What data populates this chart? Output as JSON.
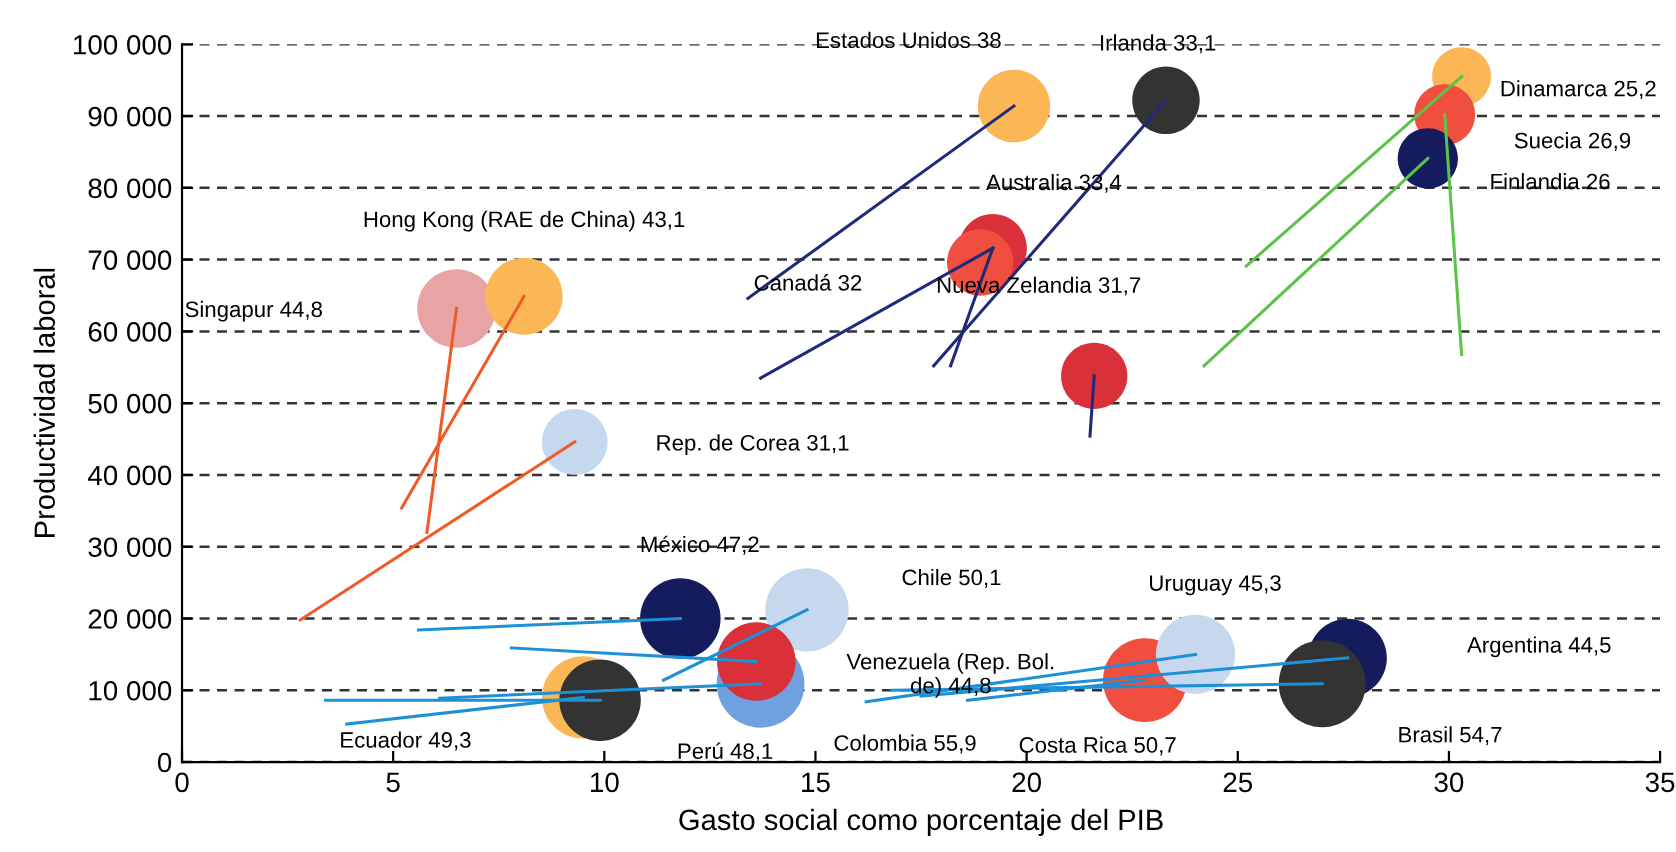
{
  "chart_data": {
    "type": "bubble",
    "xlabel": "Gasto social como porcentaje del PIB",
    "ylabel": "Productividad laboral",
    "xlim": [
      0,
      35
    ],
    "xticks": [
      0,
      5,
      10,
      15,
      20,
      25,
      30,
      35
    ],
    "ylim": [
      0,
      100000
    ],
    "yticks": [
      0,
      {
        "value": 10000,
        "label": "10 000"
      },
      {
        "value": 20000,
        "label": "20 000"
      },
      {
        "value": 30000,
        "label": "30 000"
      },
      {
        "value": 40000,
        "label": "40 000"
      },
      {
        "value": 50000,
        "label": "50 000"
      },
      {
        "value": 60000,
        "label": "60 000"
      },
      {
        "value": 70000,
        "label": "70 000"
      },
      {
        "value": 80000,
        "label": "80 000"
      },
      {
        "value": 90000,
        "label": "90 000"
      },
      {
        "value": 100000,
        "label": "100 000"
      }
    ],
    "grid": "y",
    "series": [
      {
        "x": [
          19.7,
          23.3,
          19.2,
          18.9,
          21.6,
          30.3,
          29.9,
          29.5,
          6.5,
          8.1,
          9.3,
          11.8,
          14.8,
          13.7,
          13.6,
          9.5,
          9.9,
          22.8,
          24.0,
          27.6,
          27.0
        ],
        "values": [
          91400,
          92200,
          71600,
          69600,
          53800,
          95500,
          90200,
          84100,
          63200,
          64900,
          44600,
          20000,
          21200,
          10900,
          14000,
          9000,
          8600,
          11400,
          15000,
          14500,
          10900
        ],
        "sizes": [
          0.68,
          0.59,
          0.6,
          0.57,
          0.57,
          0.45,
          0.48,
          0.47,
          0.8,
          0.77,
          0.56,
          0.84,
          0.9,
          1,
          0.8,
          0.88,
          0.86,
          0.91,
          0.81,
          0.8,
          0.98
        ],
        "colors": [
          "#fbb755",
          "#333333",
          "#d9303a",
          "#f04e3e",
          "#d9303a",
          "#fbb755",
          "#f04e3e",
          "#141c5e",
          "#e8a4a4",
          "#fbb755",
          "#c5d8ee",
          "#141c5e",
          "#c5d8ee",
          "#6fa0e0",
          "#d9303a",
          "#fbb755",
          "#333333",
          "#f04e3e",
          "#c5d8ee",
          "#141c5e",
          "#333333"
        ]
      },
      {
        "type": "line",
        "color": "#1f2a7a",
        "x": [
          13.4,
          19.7
        ],
        "values": [
          64600,
          91400
        ]
      },
      {
        "type": "line",
        "color": "#1f2a7a",
        "x": [
          17.8,
          23.3
        ],
        "values": [
          55200,
          92200
        ]
      },
      {
        "type": "line",
        "color": "#1f2a7a",
        "x": [
          18.2,
          19.2
        ],
        "values": [
          55200,
          71600
        ]
      },
      {
        "type": "line",
        "color": "#1f2a7a",
        "x": [
          13.7,
          19.2
        ],
        "values": [
          53500,
          71600
        ]
      },
      {
        "type": "line",
        "color": "#1f2a7a",
        "x": [
          21.5,
          21.6
        ],
        "values": [
          45400,
          53800
        ]
      },
      {
        "type": "line",
        "color": "#5cc24a",
        "x": [
          25.2,
          30.3
        ],
        "values": [
          69100,
          95500
        ]
      },
      {
        "type": "line",
        "color": "#5cc24a",
        "x": [
          30.3,
          29.9
        ],
        "values": [
          56800,
          90200
        ]
      },
      {
        "type": "line",
        "color": "#5cc24a",
        "x": [
          24.2,
          29.5
        ],
        "values": [
          55200,
          84100
        ]
      },
      {
        "type": "line",
        "color": "#f05a28",
        "x": [
          5.8,
          6.5
        ],
        "values": [
          32000,
          63200
        ]
      },
      {
        "type": "line",
        "color": "#f05a28",
        "x": [
          5.2,
          8.1
        ],
        "values": [
          35400,
          64900
        ]
      },
      {
        "type": "line",
        "color": "#f05a28",
        "x": [
          2.8,
          9.3
        ],
        "values": [
          19800,
          44600
        ]
      },
      {
        "type": "line",
        "color": "#1e90d6",
        "x": [
          5.6,
          11.8
        ],
        "values": [
          18400,
          20000
        ]
      },
      {
        "type": "line",
        "color": "#1e90d6",
        "x": [
          11.4,
          14.8
        ],
        "values": [
          11400,
          21200
        ]
      },
      {
        "type": "line",
        "color": "#1e90d6",
        "x": [
          7.8,
          13.6
        ],
        "values": [
          15900,
          14000
        ]
      },
      {
        "type": "line",
        "color": "#1e90d6",
        "x": [
          6.1,
          13.7
        ],
        "values": [
          8900,
          10900
        ]
      },
      {
        "type": "line",
        "color": "#1e90d6",
        "x": [
          3.9,
          9.5
        ],
        "values": [
          5300,
          9000
        ]
      },
      {
        "type": "line",
        "color": "#1e90d6",
        "x": [
          3.4,
          9.9
        ],
        "values": [
          8600,
          8600
        ]
      },
      {
        "type": "line",
        "color": "#1e90d6",
        "x": [
          16.2,
          24.0
        ],
        "values": [
          8400,
          15000
        ]
      },
      {
        "type": "line",
        "color": "#1e90d6",
        "x": [
          18.6,
          22.8
        ],
        "values": [
          8600,
          11400
        ]
      },
      {
        "type": "line",
        "color": "#1e90d6",
        "x": [
          17.5,
          27.6
        ],
        "values": [
          9200,
          14500
        ]
      },
      {
        "type": "line",
        "color": "#1e90d6",
        "x": [
          16.8,
          27.0
        ],
        "values": [
          10000,
          10900
        ]
      }
    ],
    "annotations": [
      "Estados Unidos 38",
      "Irlanda 33,1",
      "Australia 33,4",
      "Canadá 32",
      "Nueva Zelandia 31,7",
      "Dinamarca 25,2",
      "Suecia 26,9",
      "Finlandia 26",
      "Singapur 44,8",
      "Hong Kong (RAE de China) 43,1",
      "Rep. de Corea 31,1",
      "México 47,2",
      "Chile 50,1",
      "Colombia 55,9",
      "Venezuela (Rep. Bol.\nde) 44,8",
      "Ecuador 49,3",
      "Perú 48,1",
      "Costa Rica 50,7",
      "Uruguay 45,3",
      "Argentina 44,5",
      "Brasil 54,7"
    ]
  }
}
